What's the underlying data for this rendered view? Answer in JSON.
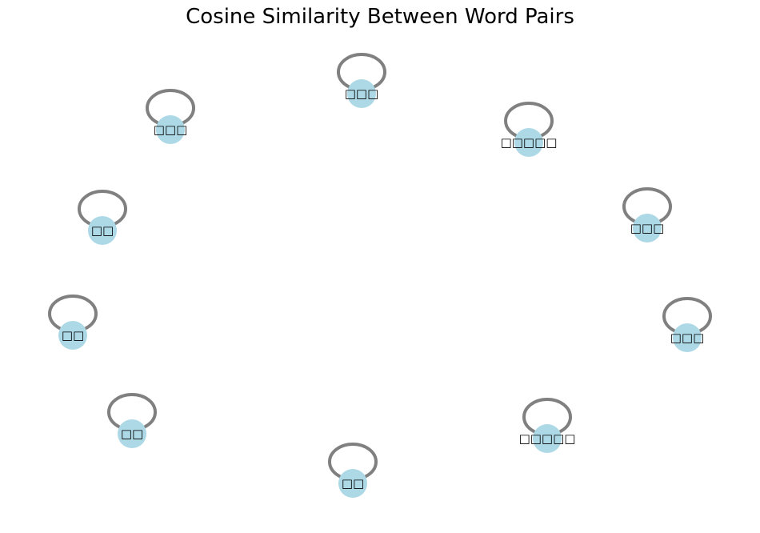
{
  "title": "Cosine Similarity Between Word Pairs",
  "colors": {
    "node": "#add8e6",
    "edge": "#808080"
  },
  "nodes": [
    {
      "label": "□□□"
    },
    {
      "label": "□□□□□"
    },
    {
      "label": "□□□"
    },
    {
      "label": "□□□"
    },
    {
      "label": "□□□□□"
    },
    {
      "label": "□□"
    },
    {
      "label": "□□"
    },
    {
      "label": "□□"
    },
    {
      "label": "□□"
    },
    {
      "label": "□□□"
    }
  ]
}
